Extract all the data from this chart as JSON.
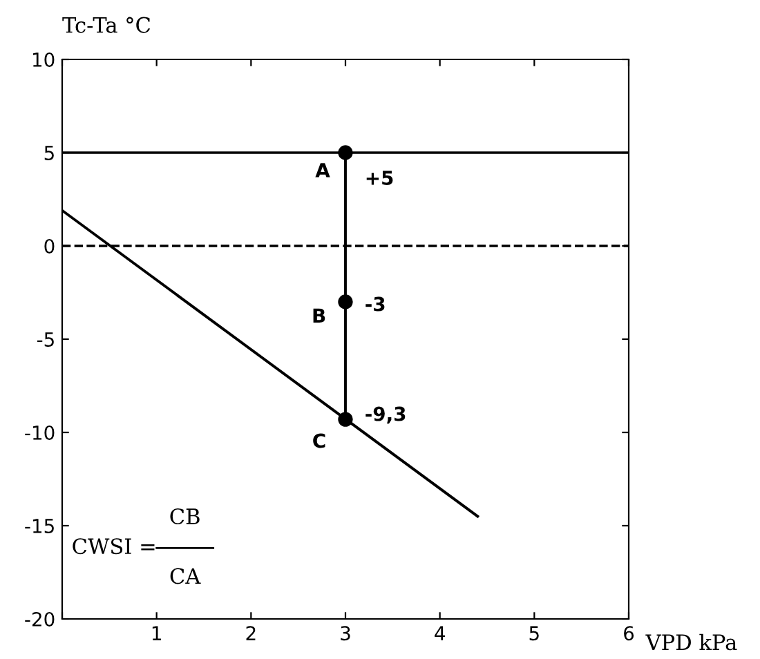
{
  "chart_data": {
    "type": "line",
    "xlabel": "VPD kPa",
    "ylabel": "Tc-Ta °C",
    "xlim": [
      0,
      6
    ],
    "xticks": [
      {
        "value": 0,
        "label": null
      },
      1,
      2,
      3,
      4,
      5,
      6
    ],
    "ylim": [
      -20,
      10
    ],
    "yticks": [
      -20,
      -15,
      -10,
      -5,
      0,
      5,
      10
    ],
    "grid": false,
    "legend": false,
    "ref_lines": [
      {
        "axis": "y",
        "value": 5,
        "label": null,
        "color": "#000000",
        "line_style": "solid"
      },
      {
        "axis": "y",
        "value": 0,
        "label": null,
        "color": "#000000",
        "line_style": "dashed"
      }
    ],
    "series": [
      {
        "color": "#000000",
        "x": [
          0,
          4.4
        ],
        "values": [
          1.9,
          -14.5
        ],
        "marker": "none",
        "line_style": "solid"
      },
      {
        "color": "#000000",
        "x": [
          3,
          3
        ],
        "values": [
          5,
          -9.3
        ],
        "marker": "none",
        "line_style": "solid"
      },
      {
        "type": "scatter",
        "color": "#000000",
        "x": [
          3,
          3,
          3
        ],
        "values": [
          5,
          -3,
          -9.3
        ],
        "marker": "circle"
      }
    ],
    "annotations": [
      "A",
      "+5",
      "B",
      "-3",
      "C",
      "-9,3",
      "CWSI =",
      "CB",
      "CA"
    ]
  }
}
